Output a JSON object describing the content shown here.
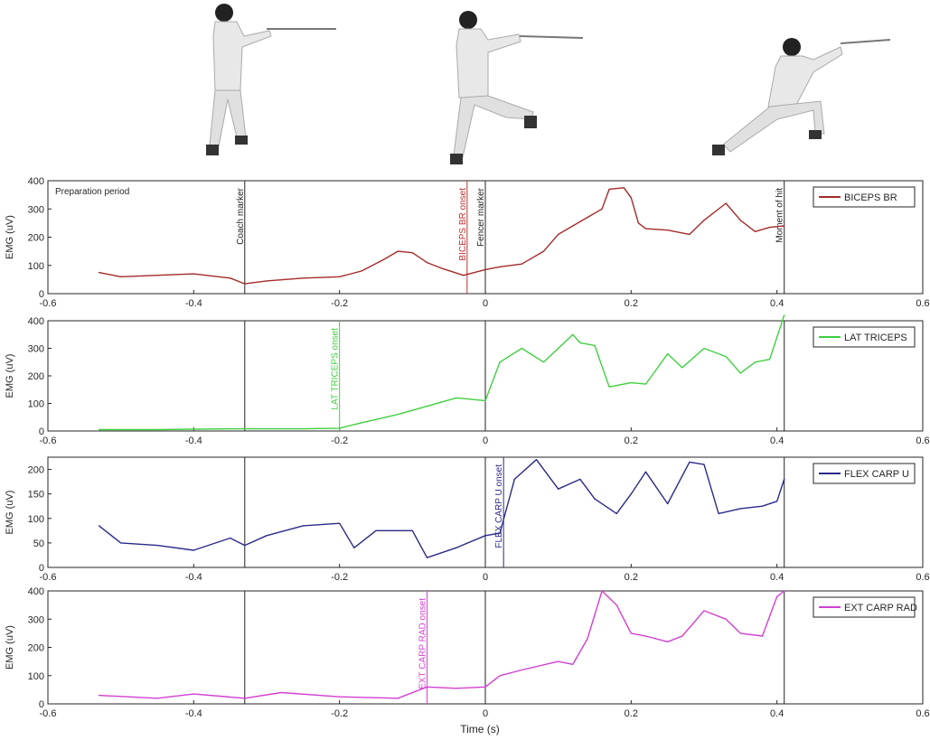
{
  "figure": {
    "xlabel": "Time (s)",
    "photos": [
      {
        "name": "fencer-en-garde-photo",
        "stance": "en-garde"
      },
      {
        "name": "fencer-fleche-photo",
        "stance": "fleche"
      },
      {
        "name": "fencer-lunge-photo",
        "stance": "lunge"
      }
    ]
  },
  "chart_data": [
    {
      "type": "line",
      "legend": "BICEPS BR",
      "color": "#a52a2a",
      "ylabel": "EMG (uV)",
      "xlim": [
        -0.6,
        0.6
      ],
      "ylim": [
        0,
        400
      ],
      "xticks": [
        "-0.6",
        "-0.4",
        "-0.2",
        "0",
        "0.2",
        "0.4",
        "0.6"
      ],
      "yticks": [
        "0",
        "100",
        "200",
        "300",
        "400"
      ],
      "annotation_text": "Preparation period",
      "markers": [
        {
          "x": -0.33,
          "label": "Coach marker",
          "color": "#222222"
        },
        {
          "x": -0.025,
          "label": "BICEPS BR onset",
          "color": "#c03030"
        },
        {
          "x": 0.0,
          "label": "Fencer marker",
          "color": "#222222"
        },
        {
          "x": 0.41,
          "label": "Moment of hit",
          "color": "#222222"
        }
      ],
      "x": [
        -0.53,
        -0.5,
        -0.45,
        -0.4,
        -0.35,
        -0.33,
        -0.3,
        -0.25,
        -0.2,
        -0.17,
        -0.14,
        -0.12,
        -0.1,
        -0.08,
        -0.06,
        -0.03,
        0.0,
        0.02,
        0.05,
        0.08,
        0.1,
        0.12,
        0.14,
        0.16,
        0.17,
        0.19,
        0.2,
        0.21,
        0.22,
        0.25,
        0.28,
        0.3,
        0.33,
        0.35,
        0.37,
        0.39,
        0.41
      ],
      "y": [
        75,
        60,
        65,
        70,
        55,
        35,
        45,
        55,
        60,
        80,
        120,
        150,
        145,
        110,
        90,
        65,
        85,
        95,
        105,
        150,
        210,
        240,
        270,
        300,
        370,
        375,
        340,
        250,
        230,
        225,
        210,
        260,
        320,
        260,
        220,
        235,
        240
      ]
    },
    {
      "type": "line",
      "legend": "LAT TRICEPS",
      "color": "#3fcf3f",
      "ylabel": "EMG (uV)",
      "xlim": [
        -0.6,
        0.6
      ],
      "ylim": [
        0,
        400
      ],
      "xticks": [
        "-0.6",
        "-0.4",
        "-0.2",
        "0",
        "0.2",
        "0.4",
        "0.6"
      ],
      "yticks": [
        "0",
        "100",
        "200",
        "300",
        "400"
      ],
      "markers": [
        {
          "x": -0.33,
          "label": "",
          "color": "#222222"
        },
        {
          "x": -0.2,
          "label": "LAT TRICEPS onset",
          "color": "#3fcf3f"
        },
        {
          "x": 0.0,
          "label": "",
          "color": "#222222"
        },
        {
          "x": 0.41,
          "label": "",
          "color": "#222222"
        }
      ],
      "x": [
        -0.53,
        -0.45,
        -0.35,
        -0.25,
        -0.2,
        -0.17,
        -0.12,
        -0.08,
        -0.04,
        0.0,
        0.02,
        0.05,
        0.08,
        0.12,
        0.13,
        0.15,
        0.17,
        0.2,
        0.22,
        0.25,
        0.27,
        0.3,
        0.33,
        0.35,
        0.37,
        0.39,
        0.41
      ],
      "y": [
        5,
        5,
        8,
        8,
        10,
        30,
        60,
        90,
        120,
        110,
        250,
        300,
        250,
        350,
        320,
        310,
        160,
        175,
        170,
        280,
        230,
        300,
        270,
        210,
        250,
        260,
        420
      ]
    },
    {
      "type": "line",
      "legend": "FLEX CARP U",
      "color": "#2a2a8a",
      "ylabel": "EMG (uV)",
      "xlim": [
        -0.6,
        0.6
      ],
      "ylim": [
        0,
        225
      ],
      "xticks": [
        "-0.6",
        "-0.4",
        "-0.2",
        "0",
        "0.2",
        "0.4",
        "0.6"
      ],
      "yticks": [
        "0",
        "50",
        "100",
        "150",
        "200"
      ],
      "markers": [
        {
          "x": -0.33,
          "label": "",
          "color": "#222222"
        },
        {
          "x": 0.0,
          "label": "",
          "color": "#222222"
        },
        {
          "x": 0.025,
          "label": "FLEX CARP U onset",
          "color": "#2a2a8a"
        },
        {
          "x": 0.41,
          "label": "",
          "color": "#222222"
        }
      ],
      "x": [
        -0.53,
        -0.5,
        -0.45,
        -0.4,
        -0.35,
        -0.33,
        -0.3,
        -0.25,
        -0.2,
        -0.18,
        -0.15,
        -0.1,
        -0.08,
        -0.04,
        0.0,
        0.02,
        0.04,
        0.07,
        0.1,
        0.13,
        0.15,
        0.18,
        0.2,
        0.22,
        0.25,
        0.28,
        0.3,
        0.32,
        0.35,
        0.38,
        0.4,
        0.41
      ],
      "y": [
        85,
        50,
        45,
        35,
        60,
        45,
        65,
        85,
        90,
        40,
        75,
        75,
        20,
        40,
        65,
        70,
        180,
        220,
        160,
        180,
        140,
        110,
        150,
        195,
        130,
        215,
        210,
        110,
        120,
        125,
        135,
        180
      ]
    },
    {
      "type": "line",
      "legend": "EXT CARP RAD",
      "color": "#d23fd2",
      "ylabel": "EMG (uV)",
      "xlim": [
        -0.6,
        0.6
      ],
      "ylim": [
        0,
        400
      ],
      "xticks": [
        "-0.6",
        "-0.4",
        "-0.2",
        "0",
        "0.2",
        "0.4",
        "0.6"
      ],
      "yticks": [
        "0",
        "100",
        "200",
        "300",
        "400"
      ],
      "markers": [
        {
          "x": -0.33,
          "label": "",
          "color": "#222222"
        },
        {
          "x": -0.08,
          "label": "EXT CARP RAD onset",
          "color": "#d23fd2"
        },
        {
          "x": 0.0,
          "label": "",
          "color": "#222222"
        },
        {
          "x": 0.41,
          "label": "",
          "color": "#222222"
        }
      ],
      "x": [
        -0.53,
        -0.45,
        -0.4,
        -0.33,
        -0.28,
        -0.2,
        -0.12,
        -0.08,
        -0.04,
        0.0,
        0.02,
        0.05,
        0.1,
        0.12,
        0.14,
        0.16,
        0.18,
        0.2,
        0.22,
        0.25,
        0.27,
        0.3,
        0.33,
        0.35,
        0.38,
        0.4,
        0.41
      ],
      "y": [
        30,
        20,
        35,
        20,
        40,
        25,
        20,
        60,
        55,
        60,
        100,
        120,
        150,
        140,
        230,
        400,
        350,
        250,
        240,
        220,
        240,
        330,
        300,
        250,
        240,
        380,
        400
      ]
    }
  ]
}
